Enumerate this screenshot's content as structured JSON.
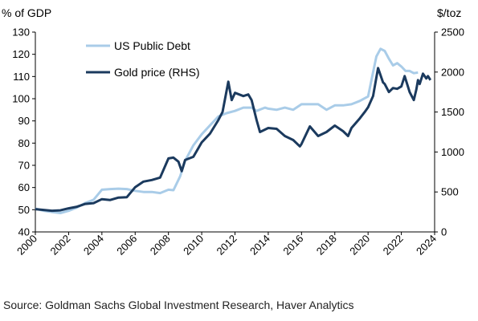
{
  "source": "Source: Goldman Sachs Global Investment Research, Haver Analytics",
  "chart_data": {
    "type": "line",
    "left_axis": {
      "unit_label": "% of GDP",
      "ylim": [
        40,
        130
      ],
      "ticks": [
        40,
        50,
        60,
        70,
        80,
        90,
        100,
        110,
        120,
        130
      ]
    },
    "right_axis": {
      "unit_label": "$/toz",
      "ylim": [
        0,
        2500
      ],
      "ticks": [
        0,
        500,
        1000,
        1500,
        2000,
        2500
      ]
    },
    "x_axis": {
      "xlim": [
        2000,
        2024
      ],
      "ticks": [
        2000,
        2002,
        2004,
        2006,
        2008,
        2010,
        2012,
        2014,
        2016,
        2018,
        2020,
        2022,
        2024
      ]
    },
    "grid": false,
    "legend_placement": "top-left",
    "series": [
      {
        "name": "US Public Debt",
        "axis": "left",
        "color": "#a9cce8",
        "points": [
          [
            2000,
            50.5
          ],
          [
            2000.5,
            49.5
          ],
          [
            2001,
            49
          ],
          [
            2001.5,
            48.5
          ],
          [
            2002,
            49.5
          ],
          [
            2002.5,
            51
          ],
          [
            2003,
            53
          ],
          [
            2003.5,
            54.5
          ],
          [
            2004,
            59
          ],
          [
            2004.5,
            59.3
          ],
          [
            2005,
            59.5
          ],
          [
            2005.5,
            59.3
          ],
          [
            2006,
            58.5
          ],
          [
            2006.5,
            58
          ],
          [
            2007,
            58
          ],
          [
            2007.5,
            57.5
          ],
          [
            2008,
            59
          ],
          [
            2008.3,
            58.8
          ],
          [
            2008.7,
            65
          ],
          [
            2009,
            72
          ],
          [
            2009.5,
            79
          ],
          [
            2010,
            84
          ],
          [
            2010.5,
            88
          ],
          [
            2011,
            92
          ],
          [
            2011.5,
            93.5
          ],
          [
            2012,
            94.5
          ],
          [
            2012.5,
            96
          ],
          [
            2013,
            96
          ],
          [
            2013.3,
            94.5
          ],
          [
            2013.8,
            96
          ],
          [
            2014,
            95.5
          ],
          [
            2014.5,
            95
          ],
          [
            2015,
            96
          ],
          [
            2015.5,
            95
          ],
          [
            2016,
            97.5
          ],
          [
            2016.5,
            97.5
          ],
          [
            2017,
            97.5
          ],
          [
            2017.5,
            95
          ],
          [
            2018,
            97
          ],
          [
            2018.5,
            97
          ],
          [
            2019,
            97.5
          ],
          [
            2019.5,
            99
          ],
          [
            2020,
            101
          ],
          [
            2020.25,
            110
          ],
          [
            2020.5,
            119
          ],
          [
            2020.75,
            122.5
          ],
          [
            2021,
            121.5
          ],
          [
            2021.25,
            118
          ],
          [
            2021.5,
            115
          ],
          [
            2021.75,
            116
          ],
          [
            2022,
            114.5
          ],
          [
            2022.25,
            112.5
          ],
          [
            2022.5,
            112.5
          ],
          [
            2022.75,
            111.5
          ],
          [
            2023,
            111.8
          ]
        ]
      },
      {
        "name": "Gold price (RHS)",
        "axis": "right",
        "color": "#1b3a5e",
        "points": [
          [
            2000,
            285
          ],
          [
            2000.5,
            275
          ],
          [
            2001,
            265
          ],
          [
            2001.5,
            270
          ],
          [
            2002,
            295
          ],
          [
            2002.5,
            315
          ],
          [
            2003,
            350
          ],
          [
            2003.5,
            360
          ],
          [
            2004,
            410
          ],
          [
            2004.5,
            400
          ],
          [
            2005,
            430
          ],
          [
            2005.5,
            435
          ],
          [
            2006,
            560
          ],
          [
            2006.5,
            630
          ],
          [
            2007,
            650
          ],
          [
            2007.5,
            680
          ],
          [
            2008,
            920
          ],
          [
            2008.3,
            930
          ],
          [
            2008.6,
            880
          ],
          [
            2008.8,
            760
          ],
          [
            2009,
            900
          ],
          [
            2009.5,
            940
          ],
          [
            2010,
            1120
          ],
          [
            2010.5,
            1230
          ],
          [
            2011,
            1400
          ],
          [
            2011.25,
            1500
          ],
          [
            2011.6,
            1880
          ],
          [
            2011.8,
            1650
          ],
          [
            2012,
            1740
          ],
          [
            2012.5,
            1700
          ],
          [
            2012.8,
            1720
          ],
          [
            2013,
            1650
          ],
          [
            2013.3,
            1400
          ],
          [
            2013.5,
            1250
          ],
          [
            2014,
            1300
          ],
          [
            2014.5,
            1290
          ],
          [
            2015,
            1200
          ],
          [
            2015.5,
            1150
          ],
          [
            2015.9,
            1070
          ],
          [
            2016,
            1100
          ],
          [
            2016.5,
            1320
          ],
          [
            2017,
            1200
          ],
          [
            2017.5,
            1250
          ],
          [
            2018,
            1330
          ],
          [
            2018.5,
            1260
          ],
          [
            2018.8,
            1200
          ],
          [
            2019,
            1300
          ],
          [
            2019.5,
            1420
          ],
          [
            2019.8,
            1500
          ],
          [
            2020,
            1560
          ],
          [
            2020.3,
            1700
          ],
          [
            2020.6,
            2050
          ],
          [
            2020.9,
            1870
          ],
          [
            2021,
            1850
          ],
          [
            2021.25,
            1750
          ],
          [
            2021.5,
            1800
          ],
          [
            2021.75,
            1790
          ],
          [
            2022,
            1820
          ],
          [
            2022.2,
            1950
          ],
          [
            2022.5,
            1750
          ],
          [
            2022.75,
            1650
          ],
          [
            2022.9,
            1780
          ],
          [
            2023,
            1900
          ],
          [
            2023.1,
            1850
          ],
          [
            2023.3,
            1980
          ],
          [
            2023.5,
            1920
          ],
          [
            2023.6,
            1950
          ],
          [
            2023.75,
            1900
          ]
        ]
      }
    ]
  }
}
